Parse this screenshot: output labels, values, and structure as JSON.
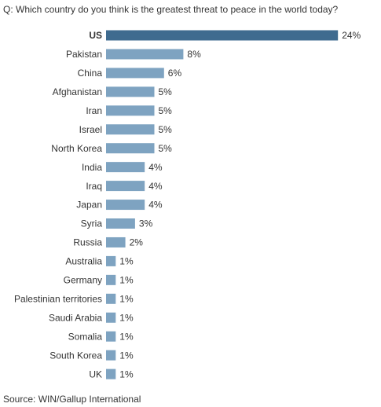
{
  "chart_data": {
    "type": "bar",
    "orientation": "horizontal",
    "title": "Q: Which country do you think is the greatest threat to peace in the world today?",
    "source": "Source: WIN/Gallup International",
    "categories": [
      "US",
      "Pakistan",
      "China",
      "Afghanistan",
      "Iran",
      "Israel",
      "North Korea",
      "India",
      "Iraq",
      "Japan",
      "Syria",
      "Russia",
      "Australia",
      "Germany",
      "Palestinian territories",
      "Saudi Arabia",
      "Somalia",
      "South Korea",
      "UK"
    ],
    "values": [
      24,
      8,
      6,
      5,
      5,
      5,
      5,
      4,
      4,
      4,
      3,
      2,
      1,
      1,
      1,
      1,
      1,
      1,
      1
    ],
    "value_labels": [
      "24%",
      "8%",
      "6%",
      "5%",
      "5%",
      "5%",
      "5%",
      "4%",
      "4%",
      "4%",
      "3%",
      "2%",
      "1%",
      "1%",
      "1%",
      "1%",
      "1%",
      "1%",
      "1%"
    ],
    "colors": [
      "#3f6b8f",
      "#7ea3c1",
      "#7ea3c1",
      "#7ea3c1",
      "#7ea3c1",
      "#7ea3c1",
      "#7ea3c1",
      "#7ea3c1",
      "#7ea3c1",
      "#7ea3c1",
      "#7ea3c1",
      "#7ea3c1",
      "#7ea3c1",
      "#7ea3c1",
      "#7ea3c1",
      "#7ea3c1",
      "#7ea3c1",
      "#7ea3c1",
      "#7ea3c1"
    ]
  }
}
